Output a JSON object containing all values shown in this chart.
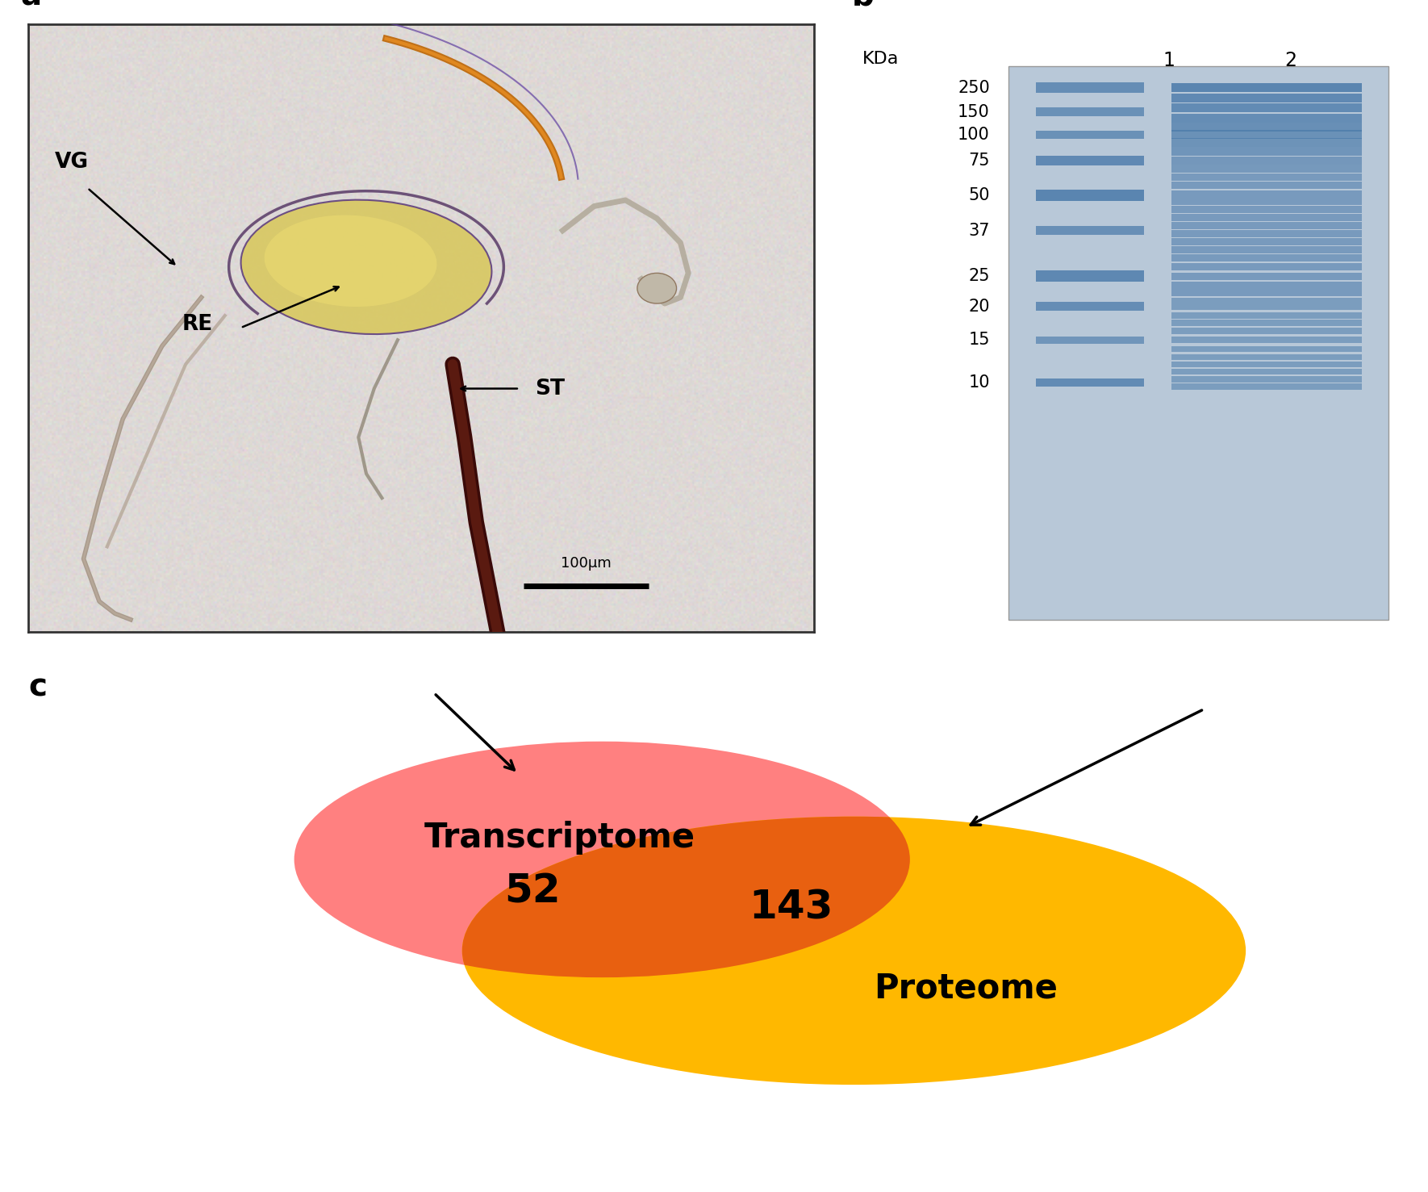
{
  "panel_a_label": "a",
  "panel_b_label": "b",
  "panel_c_label": "c",
  "background_color": "#ffffff",
  "venn_transcriptome_color": "#FF8080",
  "venn_proteome_color": "#FFB800",
  "venn_overlap_color": "#E86010",
  "venn_transcriptome_label": "Transcriptome",
  "venn_proteome_label": "Proteome",
  "venn_transcriptome_count": "52",
  "venn_overlap_count": "143",
  "gel_kda_labels": [
    "250",
    "150",
    "100",
    "75",
    "50",
    "37",
    "25",
    "20",
    "15",
    "10"
  ],
  "gel_background": "#c8d4e0",
  "gel_band_color": "#4a7aaa",
  "panel_label_fontsize": 28,
  "venn_label_fontsize": 30,
  "venn_count_fontsize": 36,
  "panel_border_color": "#333333"
}
